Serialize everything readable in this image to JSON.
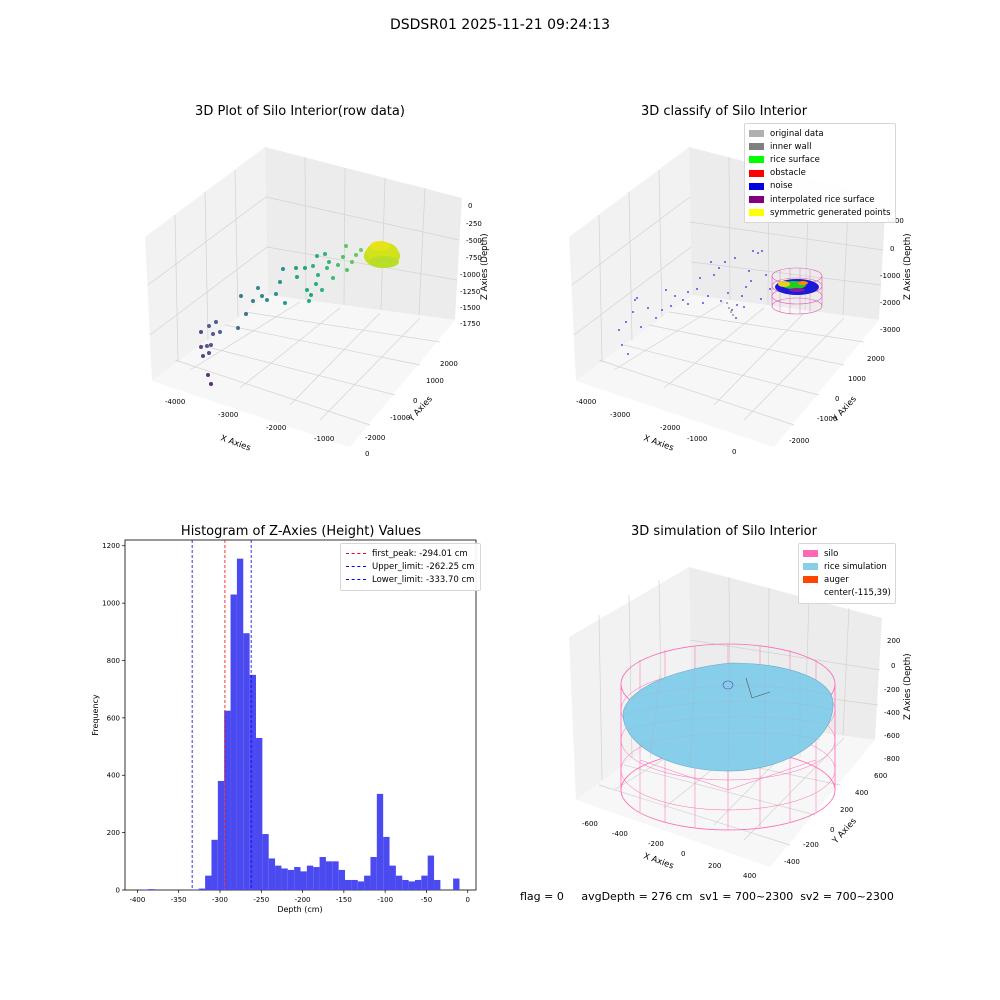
{
  "figure": {
    "suptitle": "DSDSR01 2025-11-21 09:24:13",
    "footer": "flag = 0     avgDepth = 276 cm  sv1 = 700~2300  sv2 = 700~2300"
  },
  "panels": {
    "raw": {
      "title": "3D Plot of Silo Interior(row data)",
      "xlabel": "X Axies",
      "ylabel": "Y Axies",
      "zlabel": "Z Axies (Depth)",
      "xticks": [
        "-4000",
        "-3000",
        "-2000",
        "-1000",
        "0"
      ],
      "yticks": [
        "-2000",
        "-1000",
        "0",
        "1000",
        "2000"
      ],
      "zticks": [
        "0",
        "-250",
        "-500",
        "-750",
        "-1000",
        "-1250",
        "-1500",
        "-1750"
      ]
    },
    "classify": {
      "title": "3D classify of Silo Interior",
      "xlabel": "X Axies",
      "ylabel": "Y Axies",
      "zlabel": "Z Axies (Depth)",
      "xticks": [
        "-4000",
        "-3000",
        "-2000",
        "-1000",
        "0"
      ],
      "yticks": [
        "-2000",
        "-1000",
        "0",
        "1000",
        "2000"
      ],
      "zticks": [
        "1000",
        "0",
        "-1000",
        "-2000",
        "-3000"
      ],
      "legend": [
        {
          "label": "original data",
          "color": "#b0b0b0"
        },
        {
          "label": "inner wall",
          "color": "#808080"
        },
        {
          "label": "rice surface",
          "color": "#00ff00"
        },
        {
          "label": "obstacle",
          "color": "#ff0000"
        },
        {
          "label": "noise",
          "color": "#0000e0"
        },
        {
          "label": "interpolated rice surface",
          "color": "#800080"
        },
        {
          "label": "symmetric generated points",
          "color": "#ffff00"
        }
      ]
    },
    "simulation": {
      "title": "3D simulation of Silo Interior",
      "xlabel": "X Axies",
      "ylabel": "Y Axies",
      "zlabel": "Z Axies (Depth)",
      "xticks": [
        "-600",
        "-400",
        "-200",
        "0",
        "200",
        "400"
      ],
      "yticks": [
        "-400",
        "-200",
        "0",
        "200",
        "400",
        "600"
      ],
      "zticks": [
        "200",
        "0",
        "-200",
        "-400",
        "-600",
        "-800"
      ],
      "legend": [
        {
          "label": "silo",
          "color": "#ff69b4"
        },
        {
          "label": "rice simulation",
          "color": "#87ceeb"
        },
        {
          "label": "auger",
          "color": "#ff4500"
        },
        {
          "label": "center(-115,39)",
          "color": ""
        }
      ]
    }
  },
  "chart_data": {
    "type": "bar",
    "title": "Histogram of Z-Axies (Height) Values",
    "xlabel": "Depth (cm)",
    "ylabel": "Frequency",
    "xlim": [
      -415,
      10
    ],
    "ylim": [
      0,
      1220
    ],
    "bar_color": "#4a4af0",
    "bin_start": -395,
    "bin_width": 7.7,
    "values": [
      2,
      3,
      0,
      0,
      0,
      0,
      0,
      0,
      2,
      5,
      50,
      175,
      380,
      625,
      1030,
      1155,
      895,
      750,
      530,
      195,
      110,
      85,
      75,
      70,
      80,
      65,
      85,
      80,
      115,
      100,
      100,
      70,
      35,
      35,
      30,
      50,
      115,
      335,
      185,
      85,
      50,
      35,
      30,
      35,
      50,
      120,
      35,
      0,
      0,
      40
    ],
    "xticks": [
      -400,
      -350,
      -300,
      -250,
      -200,
      -150,
      -100,
      -50,
      0
    ],
    "yticks": [
      0,
      200,
      400,
      600,
      800,
      1000,
      1200
    ],
    "vlines": [
      {
        "label": "first_peak: -294.01 cm",
        "x": -294.01,
        "color": "#ff0000"
      },
      {
        "label": "Upper_limit: -262.25 cm",
        "x": -262.25,
        "color": "#0000ff"
      },
      {
        "label": "Lower_limit: -333.70 cm",
        "x": -333.7,
        "color": "#0000ff"
      }
    ]
  }
}
